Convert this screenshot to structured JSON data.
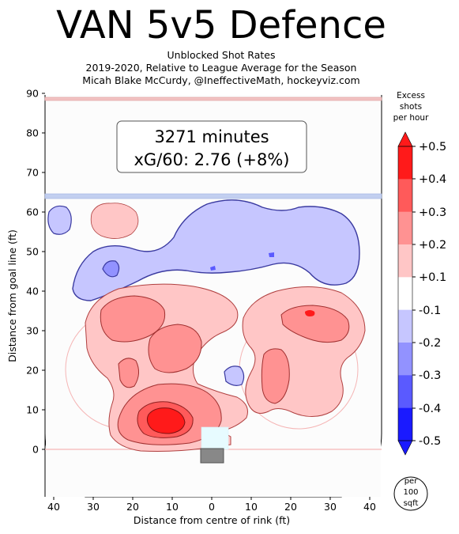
{
  "title": "VAN 5v5 Defence",
  "subtitle_lines": [
    "Unblocked Shot Rates",
    "2019-2020, Relative to League Average for the Season",
    "Micah Blake McCurdy, @IneffectiveMath, hockeyviz.com"
  ],
  "info_box": {
    "line1": "3271 minutes",
    "line2": "xG/60: 2.76 (+8%)"
  },
  "colorbar": {
    "title_lines": [
      "Excess",
      "shots",
      "per hour"
    ],
    "ticks": [
      "+0.5",
      "+0.4",
      "+0.3",
      "+0.2",
      "+0.1",
      "-0.1",
      "-0.2",
      "-0.3",
      "-0.4",
      "-0.5"
    ],
    "colors": [
      "#ff1a1a",
      "#ff5a5a",
      "#ff9292",
      "#ffc6c6",
      "#ffffff",
      "#c6c6ff",
      "#9292ff",
      "#5a5aff",
      "#1a1aff"
    ],
    "unit_lines": [
      "per",
      "100",
      "sqft"
    ]
  },
  "chart_data": {
    "type": "heatmap",
    "title": "VAN 5v5 Defence",
    "xlabel": "Distance from centre of rink (ft)",
    "ylabel": "Distance from goal line (ft)",
    "xlim": [
      -42,
      42
    ],
    "ylim": [
      -11,
      90
    ],
    "x_tick_labels": [
      "40",
      "30",
      "20",
      "10",
      "0",
      "10",
      "20",
      "30",
      "40"
    ],
    "x_tick_values": [
      -40,
      -30,
      -20,
      -10,
      0,
      10,
      20,
      30,
      40
    ],
    "y_ticks": [
      0,
      10,
      20,
      30,
      40,
      50,
      60,
      70,
      80,
      90
    ],
    "color_scale_range": [
      -0.5,
      0.5
    ]
  }
}
